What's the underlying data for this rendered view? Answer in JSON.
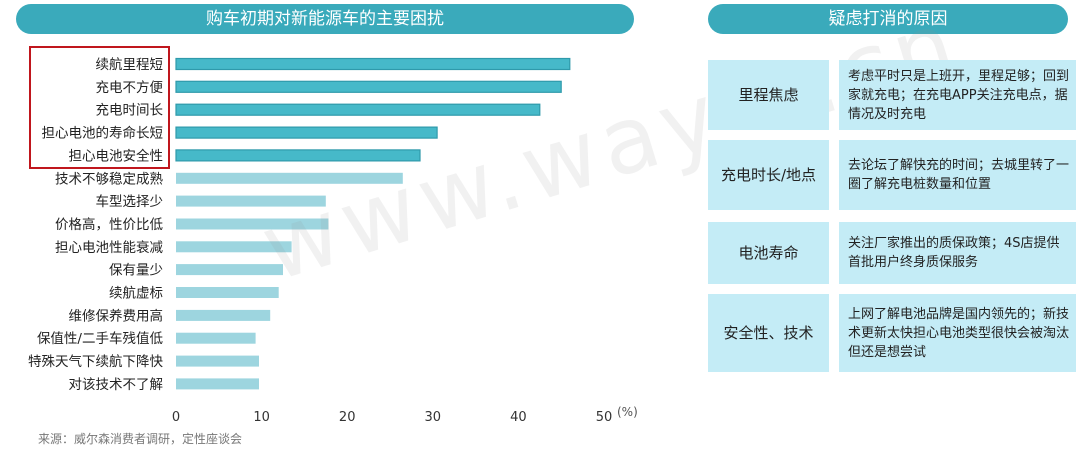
{
  "left_title": "购车初期对新能源车的主要困扰",
  "right_title": "疑虑打消的原因",
  "source": "来源：威尔森消费者调研，定性座谈会",
  "watermark": "www.way-s.cn",
  "colors": {
    "bar": "#9dd5df",
    "bar_highlight": "#46b9c9",
    "bar_border": "#2f9aab",
    "accent": "#3aaabb",
    "box": "#c4ecf6",
    "frame": "#c0161d"
  },
  "chart_data": {
    "type": "bar",
    "orientation": "horizontal",
    "categories": [
      "续航里程短",
      "充电不方便",
      "充电时间长",
      "担心电池的寿命长短",
      "担心电池安全性",
      "技术不够稳定成熟",
      "车型选择少",
      "价格高，性价比低",
      "担心电池性能衰减",
      "保有量少",
      "续航虚标",
      "维修保养费用高",
      "保值性/二手车残值低",
      "特殊天气下续航下降快",
      "对该技术不了解"
    ],
    "values": [
      46,
      45,
      42.5,
      30.5,
      28.5,
      26.5,
      17.5,
      17.8,
      13.5,
      12.5,
      12,
      11,
      9.3,
      9.7,
      9.7
    ],
    "highlighted_count": 5,
    "xlim": [
      0,
      50
    ],
    "ticks": [
      "0",
      "10",
      "20",
      "30",
      "40",
      "50"
    ],
    "unit": "(%)",
    "grid": false
  },
  "reasons": [
    {
      "category": "里程焦虑",
      "text": "考虑平时只是上班开，里程足够；回到家就充电；在充电APP关注充电点，据情况及时充电"
    },
    {
      "category": "充电时长/地点",
      "text": "去论坛了解快充的时间；去城里转了一圈了解充电桩数量和位置"
    },
    {
      "category": "电池寿命",
      "text": "关注厂家推出的质保政策；4S店提供首批用户终身质保服务"
    },
    {
      "category": "安全性、技术",
      "text": "上网了解电池品牌是国内领先的；新技术更新太快担心电池类型很快会被淘汰但还是想尝试"
    }
  ]
}
